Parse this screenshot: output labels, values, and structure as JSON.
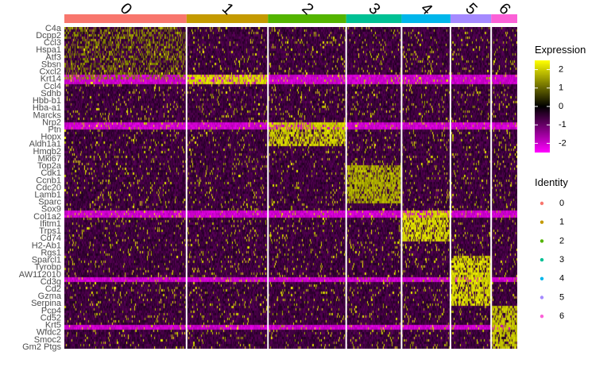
{
  "chart_data": {
    "type": "heatmap",
    "title": "",
    "xlabel": "",
    "ylabel": "",
    "x_grouping": "cells grouped by cluster identity",
    "clusters": [
      {
        "id": "0",
        "color": "#F8766D",
        "cells": 150
      },
      {
        "id": "1",
        "color": "#C49A00",
        "cells": 100
      },
      {
        "id": "2",
        "color": "#53B400",
        "cells": 96
      },
      {
        "id": "3",
        "color": "#00C094",
        "cells": 68
      },
      {
        "id": "4",
        "color": "#00B6EB",
        "cells": 60
      },
      {
        "id": "5",
        "color": "#A58AFF",
        "cells": 50
      },
      {
        "id": "6",
        "color": "#FB61D7",
        "cells": 32
      }
    ],
    "gene_labels": [
      "C4a",
      "Dcpp2",
      "Ccl3",
      "Hspa1",
      "Atf3",
      "Sbsn",
      "Cxcl2",
      "Krt14",
      "Ccl4",
      "Sdhb",
      "Hbb-b1",
      "Hba-a1",
      "Marcks",
      "Nrp2",
      "Ptn",
      "Hopx",
      "Aldh1a1",
      "Hmgb2",
      "Mki67",
      "Top2a",
      "Cdk1",
      "Ccnb1",
      "Cdc20",
      "Lamb1",
      "Sparc",
      "Sox9",
      "Col1a2",
      "Ifitm1",
      "Trps1",
      "Cd74",
      "H2-Ab1",
      "Rgs1",
      "Sparcl1",
      "Tyrobp",
      "AW112010",
      "Cd3g",
      "Cd2",
      "Gzma",
      "Serpina",
      "Pcp4",
      "Cd52",
      "Krt5",
      "Wfdc2",
      "Smoc2",
      "Gm2 Ptgs"
    ],
    "color_scale": {
      "title": "Expression",
      "low": -2.5,
      "mid": 0,
      "high": 2.5,
      "low_color": "#FF00FF",
      "mid_color": "#000000",
      "high_color": "#FFFF00",
      "ticks": [
        2,
        1,
        0,
        -1,
        -2
      ],
      "tick_labels": [
        "2",
        "1",
        "0",
        "-1",
        "-2"
      ]
    },
    "legend": {
      "title": "Identity",
      "entries": [
        "0",
        "1",
        "2",
        "3",
        "4",
        "5",
        "6"
      ],
      "placement": "right"
    },
    "marker_blocks": [
      {
        "cluster": "0",
        "expression": 1.6
      },
      {
        "cluster": "1",
        "expression": 2.4
      },
      {
        "cluster": "2",
        "expression": 2.3
      },
      {
        "cluster": "3",
        "expression": 2.0
      },
      {
        "cluster": "4",
        "expression": 2.4
      },
      {
        "cluster": "5",
        "expression": 2.4
      },
      {
        "cluster": "6",
        "expression": 2.2
      }
    ],
    "background_expression": -0.6
  }
}
